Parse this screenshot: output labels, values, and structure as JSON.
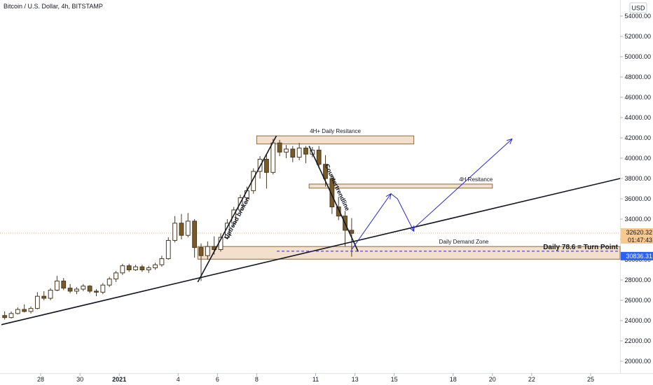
{
  "header": {
    "title": "Bitcoin / U.S. Dollar, 4h, BITSTAMP",
    "currency": "USD"
  },
  "colors": {
    "up": "#ffffff",
    "down": "#7a5a26",
    "wick": "#4a3a22",
    "zone_fill": "#f2e0cc",
    "zone_stroke": "#8a6a46",
    "projection": "#2a2ac8",
    "trendline": "#131722",
    "price_badge": "#f7c88f",
    "blue_badge": "#2962ff"
  },
  "chart_data": {
    "type": "candlestick",
    "title": "Bitcoin / U.S. Dollar, 4h, BITSTAMP",
    "ylim": [
      19000,
      55000
    ],
    "y_ticks": [
      20000,
      22000,
      24000,
      26000,
      28000,
      30000,
      32000,
      34000,
      36000,
      38000,
      40000,
      42000,
      44000,
      46000,
      48000,
      50000,
      52000,
      54000
    ],
    "y_tick_labels": [
      "20000.00",
      "22000.00",
      "24000.00",
      "26000.00",
      "28000.00",
      "30000.00",
      "32000.00",
      "34000.00",
      "36000.00",
      "38000.00",
      "40000.00",
      "42000.00",
      "44000.00",
      "46000.00",
      "48000.00",
      "50000.00",
      "52000.00",
      "54000.00"
    ],
    "x_axis": {
      "start": "2020-12-26T00:00",
      "end": "2021-01-26T12:00",
      "labels": [
        {
          "date": "2020-12-28",
          "text": "28"
        },
        {
          "date": "2020-12-30",
          "text": "30"
        },
        {
          "date": "2021-01-01",
          "text": "2021"
        },
        {
          "date": "2021-01-04",
          "text": "4"
        },
        {
          "date": "2021-01-06",
          "text": "6"
        },
        {
          "date": "2021-01-08",
          "text": "8"
        },
        {
          "date": "2021-01-11",
          "text": "11"
        },
        {
          "date": "2021-01-13",
          "text": "13"
        },
        {
          "date": "2021-01-15",
          "text": "15"
        },
        {
          "date": "2021-01-18",
          "text": "18"
        },
        {
          "date": "2021-01-20",
          "text": "20"
        },
        {
          "date": "2021-01-22",
          "text": "22"
        },
        {
          "date": "2021-01-25",
          "text": "25"
        }
      ]
    },
    "candles": [
      {
        "t": "2020-12-26T00:00",
        "o": 24500,
        "h": 24900,
        "l": 24100,
        "c": 24300
      },
      {
        "t": "2020-12-26T08:00",
        "o": 24300,
        "h": 24900,
        "l": 24200,
        "c": 24700
      },
      {
        "t": "2020-12-26T16:00",
        "o": 24700,
        "h": 25300,
        "l": 24600,
        "c": 25100
      },
      {
        "t": "2020-12-27T00:00",
        "o": 25100,
        "h": 25600,
        "l": 24800,
        "c": 24900
      },
      {
        "t": "2020-12-27T08:00",
        "o": 24900,
        "h": 25400,
        "l": 24700,
        "c": 25200
      },
      {
        "t": "2020-12-27T16:00",
        "o": 25200,
        "h": 26800,
        "l": 25100,
        "c": 26400
      },
      {
        "t": "2020-12-28T00:00",
        "o": 26400,
        "h": 26900,
        "l": 26000,
        "c": 26200
      },
      {
        "t": "2020-12-28T08:00",
        "o": 26200,
        "h": 27200,
        "l": 26000,
        "c": 27000
      },
      {
        "t": "2020-12-28T16:00",
        "o": 27000,
        "h": 28400,
        "l": 26900,
        "c": 27900
      },
      {
        "t": "2020-12-29T00:00",
        "o": 27900,
        "h": 28200,
        "l": 27000,
        "c": 27200
      },
      {
        "t": "2020-12-29T08:00",
        "o": 27200,
        "h": 27600,
        "l": 26700,
        "c": 26900
      },
      {
        "t": "2020-12-29T16:00",
        "o": 26900,
        "h": 27300,
        "l": 26600,
        "c": 27100
      },
      {
        "t": "2020-12-30T00:00",
        "o": 27100,
        "h": 27600,
        "l": 26900,
        "c": 27400
      },
      {
        "t": "2020-12-30T08:00",
        "o": 27400,
        "h": 27500,
        "l": 26700,
        "c": 26900
      },
      {
        "t": "2020-12-30T16:00",
        "o": 26900,
        "h": 27100,
        "l": 26400,
        "c": 26800
      },
      {
        "t": "2020-12-31T00:00",
        "o": 26800,
        "h": 27700,
        "l": 26600,
        "c": 27500
      },
      {
        "t": "2020-12-31T08:00",
        "o": 27500,
        "h": 28300,
        "l": 27300,
        "c": 28100
      },
      {
        "t": "2020-12-31T16:00",
        "o": 28100,
        "h": 28900,
        "l": 27800,
        "c": 28700
      },
      {
        "t": "2021-01-01T00:00",
        "o": 28700,
        "h": 29600,
        "l": 28500,
        "c": 29400
      },
      {
        "t": "2021-01-01T08:00",
        "o": 29400,
        "h": 29600,
        "l": 28800,
        "c": 29000
      },
      {
        "t": "2021-01-01T16:00",
        "o": 29000,
        "h": 29500,
        "l": 28900,
        "c": 29300
      },
      {
        "t": "2021-01-02T00:00",
        "o": 29300,
        "h": 29500,
        "l": 28800,
        "c": 29000
      },
      {
        "t": "2021-01-02T08:00",
        "o": 29000,
        "h": 29400,
        "l": 28700,
        "c": 29200
      },
      {
        "t": "2021-01-02T16:00",
        "o": 29200,
        "h": 29700,
        "l": 29000,
        "c": 29500
      },
      {
        "t": "2021-01-03T00:00",
        "o": 29500,
        "h": 30400,
        "l": 29300,
        "c": 30100
      },
      {
        "t": "2021-01-03T08:00",
        "o": 30100,
        "h": 32200,
        "l": 30000,
        "c": 31900
      },
      {
        "t": "2021-01-03T16:00",
        "o": 31900,
        "h": 34300,
        "l": 31700,
        "c": 33600
      },
      {
        "t": "2021-01-04T00:00",
        "o": 33600,
        "h": 34500,
        "l": 32000,
        "c": 32400
      },
      {
        "t": "2021-01-04T08:00",
        "o": 32400,
        "h": 34600,
        "l": 32200,
        "c": 33800
      },
      {
        "t": "2021-01-04T16:00",
        "o": 33800,
        "h": 34000,
        "l": 30200,
        "c": 31200
      },
      {
        "t": "2021-01-05T00:00",
        "o": 31200,
        "h": 31600,
        "l": 27900,
        "c": 30400
      },
      {
        "t": "2021-01-05T08:00",
        "o": 30400,
        "h": 31800,
        "l": 30000,
        "c": 31300
      },
      {
        "t": "2021-01-05T16:00",
        "o": 31300,
        "h": 32300,
        "l": 30500,
        "c": 31000
      },
      {
        "t": "2021-01-06T00:00",
        "o": 31000,
        "h": 32600,
        "l": 30800,
        "c": 32200
      },
      {
        "t": "2021-01-06T08:00",
        "o": 32200,
        "h": 34000,
        "l": 32000,
        "c": 33600
      },
      {
        "t": "2021-01-06T16:00",
        "o": 33600,
        "h": 35200,
        "l": 33300,
        "c": 34900
      },
      {
        "t": "2021-01-07T00:00",
        "o": 34900,
        "h": 36400,
        "l": 34600,
        "c": 36100
      },
      {
        "t": "2021-01-07T08:00",
        "o": 36100,
        "h": 37200,
        "l": 35500,
        "c": 36800
      },
      {
        "t": "2021-01-07T16:00",
        "o": 36800,
        "h": 39000,
        "l": 36500,
        "c": 38700
      },
      {
        "t": "2021-01-08T00:00",
        "o": 38700,
        "h": 40200,
        "l": 38000,
        "c": 39900
      },
      {
        "t": "2021-01-08T08:00",
        "o": 39900,
        "h": 40400,
        "l": 37000,
        "c": 38600
      },
      {
        "t": "2021-01-08T16:00",
        "o": 38600,
        "h": 41900,
        "l": 38400,
        "c": 41500
      },
      {
        "t": "2021-01-09T00:00",
        "o": 41500,
        "h": 41800,
        "l": 40200,
        "c": 40600
      },
      {
        "t": "2021-01-09T08:00",
        "o": 40600,
        "h": 41300,
        "l": 40000,
        "c": 40900
      },
      {
        "t": "2021-01-09T16:00",
        "o": 40900,
        "h": 41200,
        "l": 39600,
        "c": 40100
      },
      {
        "t": "2021-01-10T00:00",
        "o": 40100,
        "h": 41500,
        "l": 39800,
        "c": 41000
      },
      {
        "t": "2021-01-10T08:00",
        "o": 41000,
        "h": 41200,
        "l": 39500,
        "c": 40400
      },
      {
        "t": "2021-01-10T16:00",
        "o": 40400,
        "h": 41100,
        "l": 40100,
        "c": 40800
      },
      {
        "t": "2021-01-11T00:00",
        "o": 40800,
        "h": 41200,
        "l": 39000,
        "c": 39400
      },
      {
        "t": "2021-01-11T08:00",
        "o": 39400,
        "h": 40300,
        "l": 37200,
        "c": 38000
      },
      {
        "t": "2021-01-11T16:00",
        "o": 38000,
        "h": 38400,
        "l": 34500,
        "c": 35200
      },
      {
        "t": "2021-01-12T00:00",
        "o": 35200,
        "h": 36200,
        "l": 33900,
        "c": 34300
      },
      {
        "t": "2021-01-12T08:00",
        "o": 34300,
        "h": 34800,
        "l": 31300,
        "c": 32900
      },
      {
        "t": "2021-01-12T16:00",
        "o": 32900,
        "h": 34100,
        "l": 30300,
        "c": 32600
      }
    ],
    "trendlines": [
      {
        "name": "long-trendline",
        "from": {
          "t": "2020-12-26T00:00",
          "p": 23600
        },
        "to": {
          "t": "2021-01-26T12:00",
          "p": 38000
        }
      },
      {
        "name": "uptrend-line",
        "from": {
          "t": "2021-01-05T00:00",
          "p": 27800
        },
        "to": {
          "t": "2021-01-09T00:00",
          "p": 42200
        }
      },
      {
        "name": "counter-trendline",
        "from": {
          "t": "2021-01-10T16:00",
          "p": 41200
        },
        "to": {
          "t": "2021-01-13T04:00",
          "p": 30800
        }
      }
    ],
    "zones": [
      {
        "name": "resistance-daily-zone",
        "label": "4H+ Daily Resitance",
        "t1": "2021-01-08T00:00",
        "t2": "2021-01-16T00:00",
        "p1": 41400,
        "p2": 42200
      },
      {
        "name": "resistance-4h-zone",
        "label": "4H Resitance",
        "t1": "2021-01-10T16:00",
        "t2": "2021-01-20T00:00",
        "p1": 37050,
        "p2": 37450
      },
      {
        "name": "demand-zone",
        "label": "Daily Demand Zone",
        "t1": "2021-01-05T00:00",
        "t2": "2021-01-26T12:00",
        "p1": 30050,
        "p2": 31300
      }
    ],
    "annotations": {
      "uptrend_broken": "Uptrend broken",
      "counter_trendline": "Countertrendline",
      "turn_point": "Daily 78.6 = Turn Point",
      "turn_point_price": 30836.31
    },
    "projection_path": [
      {
        "t": "2021-01-12T20:00",
        "p": 31000
      },
      {
        "t": "2021-01-14T20:00",
        "p": 36500
      },
      {
        "t": "2021-01-15T04:00",
        "p": 36000
      },
      {
        "t": "2021-01-16T00:00",
        "p": 32800
      },
      {
        "t": "2021-01-16T00:00",
        "p": 33100
      },
      {
        "t": "2021-01-21T00:00",
        "p": 41900
      }
    ],
    "price_labels": {
      "last_price": "32620.32",
      "countdown": "01:47:43",
      "blue_price": "30836.31"
    }
  }
}
